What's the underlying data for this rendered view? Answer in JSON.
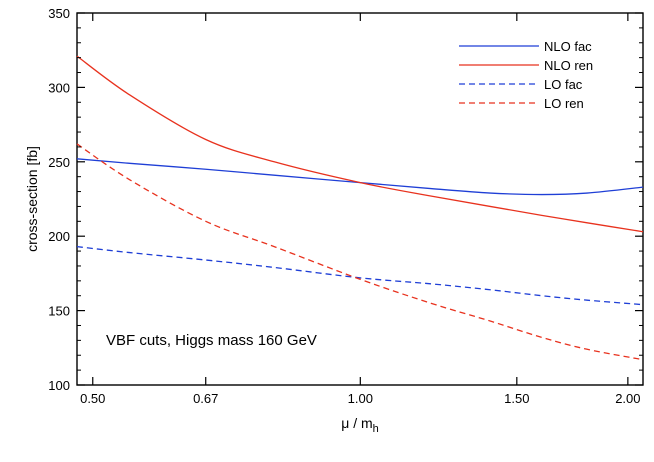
{
  "chart_data": {
    "type": "line",
    "title": "",
    "xlabel_main": "μ / m",
    "xlabel_sub": "h",
    "ylabel": "cross-section [fb]",
    "xscale": "log",
    "xlim": [
      0.48,
      2.08
    ],
    "ylim": [
      100,
      350
    ],
    "x_ticks": [
      {
        "value": 0.5,
        "label": "0.50"
      },
      {
        "value": 0.67,
        "label": "0.67"
      },
      {
        "value": 1.0,
        "label": "1.00"
      },
      {
        "value": 1.5,
        "label": "1.50"
      },
      {
        "value": 2.0,
        "label": "2.00"
      }
    ],
    "y_ticks": [
      {
        "value": 100,
        "label": "100"
      },
      {
        "value": 150,
        "label": "150"
      },
      {
        "value": 200,
        "label": "200"
      },
      {
        "value": 250,
        "label": "250"
      },
      {
        "value": 300,
        "label": "300"
      },
      {
        "value": 350,
        "label": "350"
      }
    ],
    "annotation": "VBF cuts, Higgs mass 160 GeV",
    "legend_position": "top-right",
    "series": [
      {
        "name": "NLO fac",
        "color": "#1f3fd6",
        "dash": "solid",
        "x": [
          0.48,
          0.55,
          0.67,
          0.8,
          1.0,
          1.2,
          1.4,
          1.6,
          1.8,
          2.08
        ],
        "y": [
          252,
          249,
          245,
          241,
          236,
          232,
          229,
          228,
          229,
          233
        ]
      },
      {
        "name": "NLO ren",
        "color": "#e8321e",
        "dash": "solid",
        "x": [
          0.48,
          0.55,
          0.67,
          0.8,
          1.0,
          1.2,
          1.4,
          1.6,
          1.8,
          2.08
        ],
        "y": [
          321,
          295,
          265,
          250,
          236,
          227,
          220,
          214,
          209,
          203
        ]
      },
      {
        "name": "LO fac",
        "color": "#1f3fd6",
        "dash": "dashed",
        "x": [
          0.48,
          0.55,
          0.67,
          0.8,
          1.0,
          1.2,
          1.4,
          1.6,
          1.8,
          2.08
        ],
        "y": [
          193,
          189,
          184,
          179,
          172,
          168,
          164,
          160,
          157,
          154
        ]
      },
      {
        "name": "LO ren",
        "color": "#e8321e",
        "dash": "dashed",
        "x": [
          0.48,
          0.55,
          0.67,
          0.8,
          1.0,
          1.2,
          1.4,
          1.6,
          1.8,
          2.08
        ],
        "y": [
          262,
          238,
          210,
          193,
          171,
          155,
          143,
          132,
          124,
          117
        ]
      }
    ]
  }
}
